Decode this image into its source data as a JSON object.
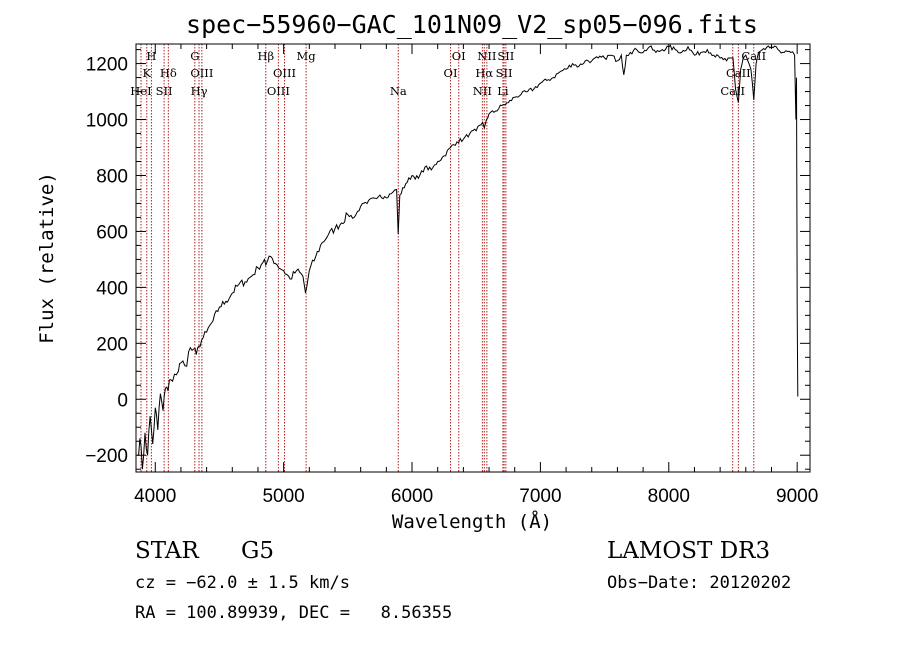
{
  "chart_data": {
    "type": "line",
    "title": "spec−55960−GAC_101N09_V2_sp05−096.fits",
    "xlabel": "Wavelength (Å)",
    "ylabel": "Flux (relative)",
    "xlim": [
      3850,
      9100
    ],
    "ylim": [
      -260,
      1270
    ],
    "xticks": [
      4000,
      5000,
      6000,
      7000,
      8000,
      9000
    ],
    "yticks": [
      -200,
      0,
      200,
      400,
      600,
      800,
      1000,
      1200
    ],
    "series": [
      {
        "name": "flux",
        "x": [
          3860,
          3880,
          3900,
          3920,
          3940,
          3960,
          3980,
          4000,
          4020,
          4040,
          4060,
          4080,
          4100,
          4120,
          4150,
          4180,
          4200,
          4230,
          4260,
          4300,
          4320,
          4340,
          4360,
          4400,
          4450,
          4500,
          4550,
          4600,
          4650,
          4700,
          4750,
          4800,
          4850,
          4861,
          4900,
          4950,
          5000,
          5050,
          5100,
          5150,
          5170,
          5180,
          5200,
          5250,
          5300,
          5350,
          5400,
          5450,
          5500,
          5550,
          5600,
          5650,
          5700,
          5750,
          5800,
          5850,
          5880,
          5892,
          5905,
          5950,
          6000,
          6050,
          6100,
          6150,
          6200,
          6250,
          6300,
          6350,
          6400,
          6450,
          6500,
          6550,
          6563,
          6580,
          6600,
          6650,
          6700,
          6750,
          6800,
          6850,
          6900,
          6950,
          7000,
          7050,
          7100,
          7150,
          7200,
          7250,
          7300,
          7350,
          7400,
          7450,
          7500,
          7550,
          7600,
          7630,
          7650,
          7670,
          7700,
          7750,
          7800,
          7850,
          7900,
          7950,
          8000,
          8050,
          8100,
          8150,
          8200,
          8250,
          8300,
          8350,
          8400,
          8450,
          8500,
          8520,
          8542,
          8560,
          8580,
          8600,
          8640,
          8662,
          8680,
          8700,
          8750,
          8800,
          8850,
          8900,
          8950,
          8980,
          8990,
          8995,
          9000,
          9005
        ],
        "values": [
          -200,
          -140,
          -250,
          -120,
          -200,
          -60,
          -160,
          -30,
          -110,
          20,
          -40,
          40,
          30,
          70,
          90,
          100,
          130,
          120,
          170,
          180,
          160,
          190,
          210,
          240,
          280,
          330,
          350,
          380,
          410,
          420,
          440,
          470,
          500,
          480,
          510,
          480,
          460,
          430,
          460,
          440,
          380,
          400,
          460,
          510,
          560,
          590,
          610,
          630,
          660,
          650,
          690,
          700,
          720,
          730,
          720,
          740,
          750,
          590,
          730,
          770,
          800,
          790,
          830,
          820,
          850,
          870,
          900,
          920,
          930,
          950,
          960,
          990,
          970,
          1000,
          1020,
          1030,
          1050,
          1060,
          1080,
          1090,
          1100,
          1110,
          1130,
          1140,
          1150,
          1170,
          1180,
          1200,
          1190,
          1210,
          1210,
          1220,
          1220,
          1230,
          1210,
          1230,
          1160,
          1230,
          1240,
          1250,
          1240,
          1260,
          1240,
          1250,
          1260,
          1250,
          1240,
          1260,
          1230,
          1240,
          1250,
          1230,
          1220,
          1210,
          1220,
          1110,
          1060,
          1180,
          1220,
          1230,
          1180,
          1070,
          1200,
          1240,
          1250,
          1260,
          1250,
          1240,
          1240,
          1230,
          1000,
          1150,
          310,
          10
        ]
      }
    ],
    "lines": [
      {
        "label": "H",
        "wl": 3970,
        "row": 0
      },
      {
        "label": "K",
        "wl": 3934,
        "row": 1
      },
      {
        "label": "HeI",
        "wl": 3889,
        "row": 2
      },
      {
        "label": "SII",
        "wl": 4069,
        "row": 2
      },
      {
        "label": "Hδ",
        "wl": 4102,
        "row": 1
      },
      {
        "label": "G",
        "wl": 4308,
        "row": 0
      },
      {
        "label": "OIII",
        "wl": 4363,
        "row": 1
      },
      {
        "label": "Hγ",
        "wl": 4341,
        "row": 2
      },
      {
        "label": "Hβ",
        "wl": 4861,
        "row": 0
      },
      {
        "label": "OIII",
        "wl": 5007,
        "row": 1
      },
      {
        "label": "OIII",
        "wl": 4959,
        "row": 2
      },
      {
        "label": "Mg",
        "wl": 5175,
        "row": 0
      },
      {
        "label": "Na",
        "wl": 5893,
        "row": 2
      },
      {
        "label": "OI",
        "wl": 6364,
        "row": 0
      },
      {
        "label": "OI",
        "wl": 6300,
        "row": 1
      },
      {
        "label": "NII",
        "wl": 6583,
        "row": 0
      },
      {
        "label": "Hα",
        "wl": 6563,
        "row": 1
      },
      {
        "label": "NII",
        "wl": 6548,
        "row": 2
      },
      {
        "label": "SII",
        "wl": 6731,
        "row": 0
      },
      {
        "label": "SII",
        "wl": 6717,
        "row": 1
      },
      {
        "label": "Li",
        "wl": 6708,
        "row": 2
      },
      {
        "label": "CaII",
        "wl": 8662,
        "row": 0
      },
      {
        "label": "CaII",
        "wl": 8542,
        "row": 1
      },
      {
        "label": "CaII",
        "wl": 8498,
        "row": 2
      }
    ]
  },
  "info": {
    "object_type": "STAR",
    "subclass": "G5",
    "survey": "LAMOST DR3",
    "redshift": "cz = −62.0 ± 1.5 km/s",
    "obs_date": "Obs−Date: 20120202",
    "coords": "RA = 100.89939, DEC =   8.56355"
  },
  "colors": {
    "line_marker": "#b22222",
    "spectrum": "#000000",
    "axes": "#000000"
  }
}
